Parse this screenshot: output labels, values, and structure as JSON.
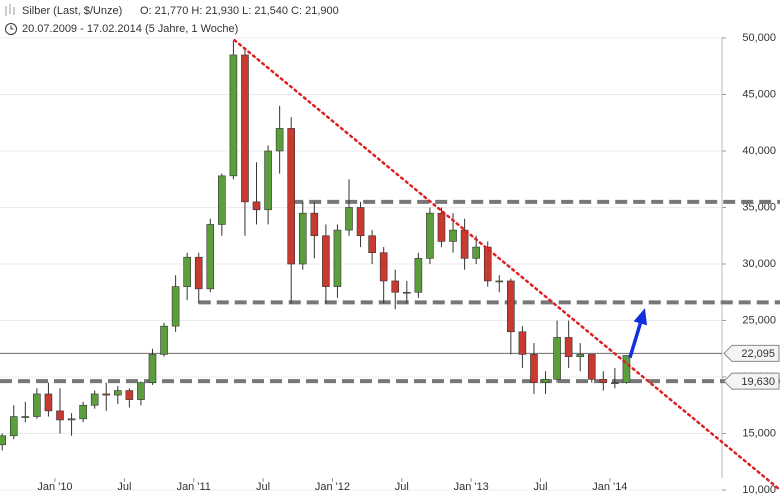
{
  "chart_data": {
    "type": "candlestick",
    "title": "Silber (Last, $/Unze)",
    "ohlc_text": "O: 21,770  H: 21,930  L: 21,540  C: 21,900",
    "period": "20.07.2009 - 17.02.2014 (5 Jahre, 1 Woche)",
    "categories": [
      null,
      null,
      null,
      null,
      null,
      "Jan '10",
      null,
      null,
      null,
      null,
      null,
      "Jul",
      null,
      null,
      null,
      null,
      null,
      "Jan '11",
      null,
      null,
      null,
      null,
      null,
      "Jul",
      null,
      null,
      null,
      null,
      null,
      "Jan '12",
      null,
      null,
      null,
      null,
      null,
      "Jul",
      null,
      null,
      null,
      null,
      null,
      "Jan '13",
      null,
      null,
      null,
      null,
      null,
      "Jul",
      null,
      null,
      null,
      null,
      null,
      "Jan '14",
      null
    ],
    "open": [
      14000,
      14800,
      16500,
      16500,
      18500,
      17000,
      16200,
      16300,
      17500,
      18500,
      18400,
      18800,
      18000,
      19500,
      22000,
      24500,
      28000,
      30600,
      27800,
      33500,
      37800,
      48500,
      35500,
      34800,
      40000,
      42000,
      30000,
      34500,
      32500,
      28000,
      33000,
      35000,
      32500,
      31000,
      28500,
      27500,
      27500,
      30500,
      34500,
      32000,
      33000,
      30500,
      31500,
      28500,
      28500,
      24000,
      22000,
      19500,
      19800,
      23500,
      21800,
      22000,
      19800,
      19500,
      19500
    ],
    "high": [
      15000,
      17500,
      17800,
      19000,
      19500,
      19000,
      16800,
      17800,
      18800,
      19500,
      19200,
      19000,
      19600,
      22500,
      24800,
      29000,
      31000,
      31000,
      34000,
      38000,
      49800,
      49000,
      39000,
      40500,
      44000,
      43000,
      35500,
      35500,
      33500,
      33500,
      37500,
      35500,
      33000,
      31500,
      29500,
      28500,
      31000,
      35000,
      35000,
      34500,
      34000,
      32500,
      32000,
      29000,
      28700,
      24500,
      23000,
      20500,
      25000,
      25000,
      23000,
      22000,
      20500,
      20800,
      21930
    ],
    "low": [
      13500,
      14500,
      16000,
      16300,
      16500,
      15000,
      14800,
      16000,
      17200,
      17000,
      17600,
      17300,
      17500,
      19300,
      21800,
      24000,
      26800,
      26500,
      27500,
      32500,
      37500,
      32500,
      33500,
      33500,
      38000,
      26500,
      29500,
      30500,
      26500,
      27000,
      32500,
      31500,
      30000,
      26500,
      26000,
      26500,
      27000,
      30000,
      31500,
      31000,
      29500,
      30000,
      28000,
      27500,
      22000,
      20800,
      18500,
      18500,
      19500,
      20800,
      20500,
      19500,
      18800,
      19000,
      19400
    ],
    "close": [
      14800,
      16500,
      16500,
      18500,
      17000,
      16200,
      16300,
      17500,
      18500,
      18400,
      18800,
      18000,
      19500,
      22000,
      24500,
      28000,
      30600,
      27800,
      33500,
      37800,
      48500,
      35500,
      34800,
      40000,
      42000,
      30000,
      34500,
      32500,
      28000,
      33000,
      35000,
      32500,
      31000,
      28500,
      27500,
      27500,
      30500,
      34500,
      32000,
      33000,
      30500,
      31500,
      28500,
      28500,
      24000,
      22000,
      19500,
      19800,
      23500,
      21800,
      22000,
      19800,
      19500,
      19500,
      21900
    ],
    "up_color": "#5c9e3c",
    "down_color": "#c8392f",
    "ylim": [
      10000,
      50000
    ],
    "yticks": [
      {
        "value": 10000,
        "label": "10,000"
      },
      {
        "value": 15000,
        "label": "15,000"
      },
      {
        "value": 20000,
        "label": "20,000"
      },
      {
        "value": 25000,
        "label": "25,000"
      },
      {
        "value": 30000,
        "label": "30,000"
      },
      {
        "value": 35000,
        "label": "35,000"
      },
      {
        "value": 40000,
        "label": "40,000"
      },
      {
        "value": 45000,
        "label": "45,000"
      },
      {
        "value": 50000,
        "label": "50,000"
      }
    ],
    "grid": true,
    "levels": [
      35500,
      26600,
      19630
    ],
    "level_color": "#777777",
    "price_line": 22095,
    "price_tags": [
      {
        "value": 22095,
        "label": "22,095"
      },
      {
        "value": 19630,
        "label": "19,630"
      }
    ],
    "trendline": {
      "x": [
        20.1,
        67.3
      ],
      "y": [
        49800,
        10000
      ],
      "color": "#e02020"
    },
    "arrow": {
      "x": [
        54.3,
        55.6
      ],
      "y": [
        21700,
        26100
      ],
      "color": "#1030e0"
    }
  }
}
